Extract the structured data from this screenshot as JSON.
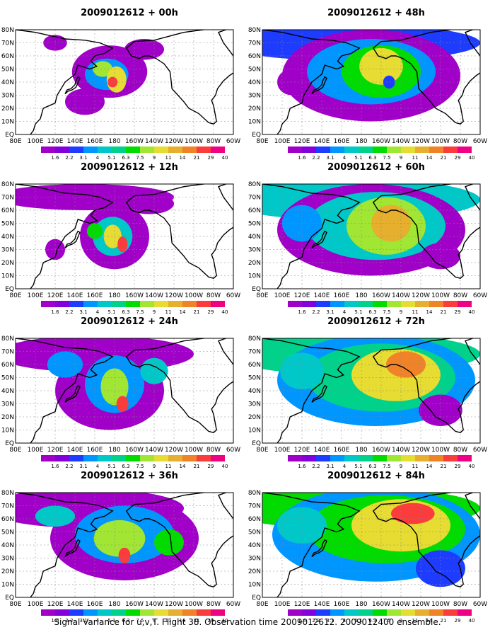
{
  "panels": [
    {
      "title": "2009012612 + 00h",
      "lead": 0
    },
    {
      "title": "2009012612 + 48h",
      "lead": 48
    },
    {
      "title": "2009012612 + 12h",
      "lead": 12
    },
    {
      "title": "2009012612 + 60h",
      "lead": 60
    },
    {
      "title": "2009012612 + 24h",
      "lead": 24
    },
    {
      "title": "2009012612 + 72h",
      "lead": 72
    },
    {
      "title": "2009012612 + 36h",
      "lead": 36
    },
    {
      "title": "2009012612 + 84h",
      "lead": 84
    }
  ],
  "lon_labels": [
    "80E",
    "100E",
    "120E",
    "140E",
    "160E",
    "180",
    "160W",
    "140W",
    "120W",
    "100W",
    "80W",
    "60W"
  ],
  "lat_labels": [
    "EQ",
    "10N",
    "20N",
    "30N",
    "40N",
    "50N",
    "60N",
    "70N",
    "80N"
  ],
  "colorbar": {
    "levels": [
      "1.6",
      "2.2",
      "3.1",
      "4",
      "5.1",
      "6.3",
      "7.5",
      "9",
      "11",
      "14",
      "21",
      "29",
      "40"
    ],
    "colors": [
      "#a000c8",
      "#8200dc",
      "#1e3cff",
      "#0096ff",
      "#00c8c8",
      "#00d28c",
      "#00dc00",
      "#a0e632",
      "#e6dc32",
      "#e6af2d",
      "#f08228",
      "#fa3c3c",
      "#f00082"
    ]
  },
  "footer": "Signal Variance for u,v,T. Flight 38. Observation time 2009012612. 2009012400 ensemble."
}
